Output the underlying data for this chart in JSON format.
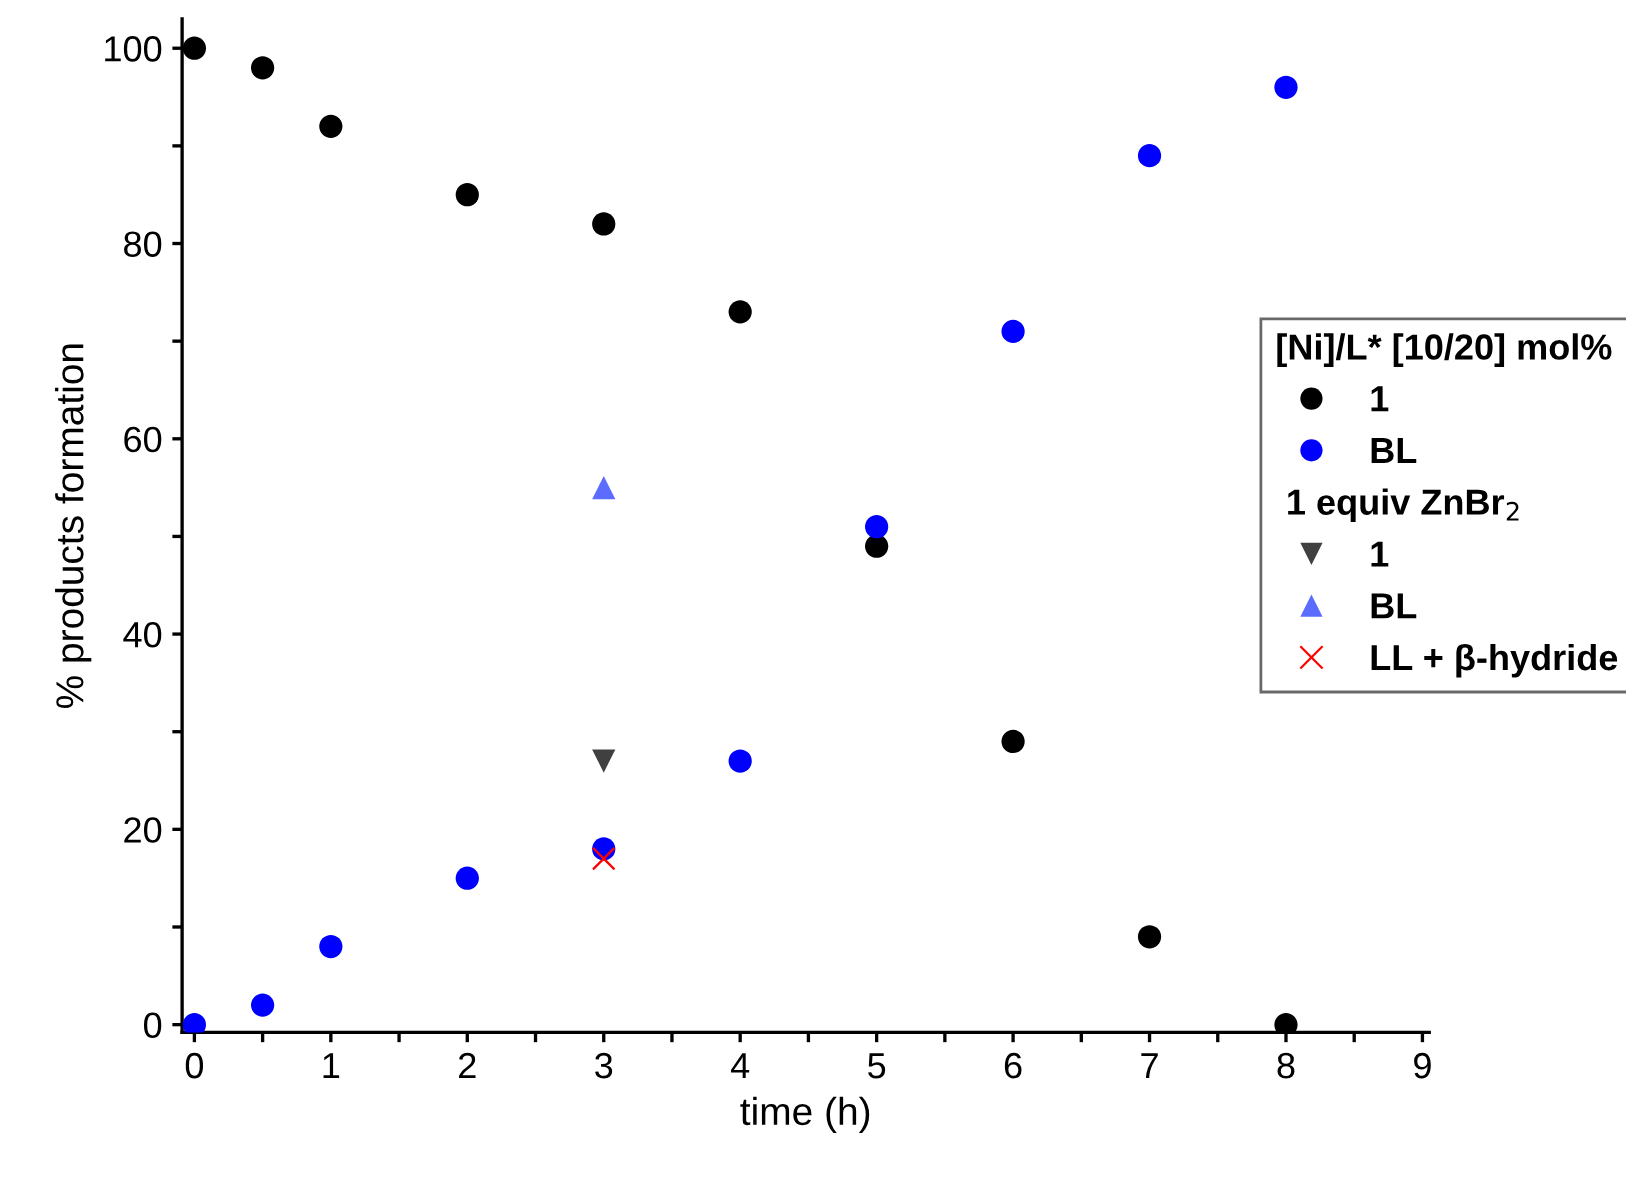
{
  "chart_data": {
    "type": "scatter",
    "xlabel": "time (h)",
    "ylabel": "% products formation",
    "legend_title": "[Ni]/L* [10/20] mol%",
    "legend": "right",
    "grid": false,
    "xlim": [
      -0.09,
      9.05
    ],
    "ylim": [
      -0.8,
      103
    ],
    "xticks": [
      0,
      {
        "value": 0.5,
        "label": null
      },
      1,
      {
        "value": 1.5,
        "label": null
      },
      2,
      {
        "value": 2.5,
        "label": null
      },
      3,
      {
        "value": 3.5,
        "label": null
      },
      4,
      {
        "value": 4.5,
        "label": null
      },
      5,
      {
        "value": 5.5,
        "label": null
      },
      6,
      {
        "value": 6.5,
        "label": null
      },
      7,
      {
        "value": 7.5,
        "label": null
      },
      8,
      {
        "value": 8.5,
        "label": null
      },
      9
    ],
    "yticks": [
      0,
      {
        "value": 10,
        "label": null
      },
      20,
      {
        "value": 30,
        "label": null
      },
      40,
      {
        "value": 50,
        "label": null
      },
      60,
      {
        "value": 70,
        "label": null
      },
      80,
      {
        "value": 90,
        "label": null
      },
      100
    ],
    "annotations": [
      "1 equiv ZnBr$_{2}$"
    ],
    "series": [
      {
        "name": "1",
        "color": "#000000",
        "marker": "circle",
        "x": [
          0,
          0.5,
          1,
          2,
          3,
          4,
          5,
          6,
          7,
          8
        ],
        "values": [
          100,
          98,
          92,
          85,
          82,
          73,
          49,
          29,
          9,
          0
        ]
      },
      {
        "name": "BL",
        "color": "#0000ff",
        "marker": "circle",
        "x": [
          0,
          0.5,
          1,
          2,
          3,
          4,
          5,
          6,
          7,
          8
        ],
        "values": [
          0,
          2,
          8,
          15,
          18,
          27,
          51,
          71,
          89,
          96
        ]
      },
      {
        "name": "1",
        "color": "#404040",
        "marker": "triangle_down",
        "x": [
          3
        ],
        "values": [
          27
        ]
      },
      {
        "name": "BL",
        "color": "#5b6cff",
        "marker": "triangle",
        "x": [
          3
        ],
        "values": [
          55
        ]
      },
      {
        "name": "LL + β-hydride",
        "color": "#ff0000",
        "marker": "cross",
        "x": [
          3
        ],
        "values": [
          17
        ]
      }
    ]
  }
}
